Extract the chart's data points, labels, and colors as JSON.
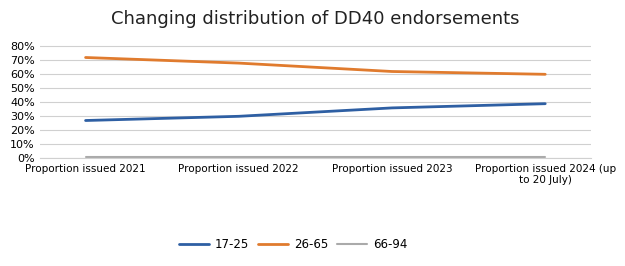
{
  "title": "Changing distribution of DD40 endorsements",
  "categories": [
    "Proportion issued 2021",
    "Proportion issued 2022",
    "Proportion issued 2023",
    "Proportion issued 2024 (up\nto 20 July)"
  ],
  "series": [
    {
      "label": "17-25",
      "values": [
        0.27,
        0.3,
        0.36,
        0.39
      ],
      "color": "#2e5fa3",
      "linewidth": 2.0
    },
    {
      "label": "26-65",
      "values": [
        0.72,
        0.68,
        0.62,
        0.6
      ],
      "color": "#e07b2e",
      "linewidth": 2.0
    },
    {
      "label": "66-94",
      "values": [
        0.01,
        0.01,
        0.01,
        0.01
      ],
      "color": "#aaaaaa",
      "linewidth": 1.5
    }
  ],
  "ylim": [
    0.0,
    0.88
  ],
  "yticks": [
    0.0,
    0.1,
    0.2,
    0.3,
    0.4,
    0.5,
    0.6,
    0.7,
    0.8
  ],
  "background_color": "#ffffff",
  "grid_color": "#d0d0d0",
  "title_fontsize": 13,
  "legend_fontsize": 8.5,
  "tick_fontsize": 8,
  "xtick_fontsize": 7.5
}
